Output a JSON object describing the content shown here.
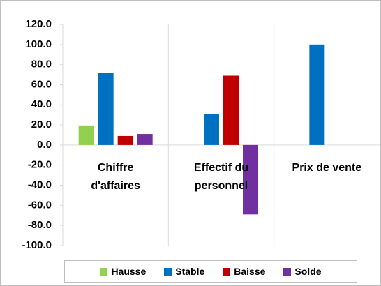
{
  "chart_data": {
    "type": "bar",
    "categories": [
      "Chiffre d'affaires",
      "Effectif du personnel",
      "Prix de vente"
    ],
    "series": [
      {
        "name": "Hausse",
        "color": "#92d050",
        "values": [
          19.5,
          0,
          0
        ]
      },
      {
        "name": "Stable",
        "color": "#0070c0",
        "values": [
          71.5,
          31,
          100
        ]
      },
      {
        "name": "Baisse",
        "color": "#c00000",
        "values": [
          9,
          69,
          0
        ]
      },
      {
        "name": "Solde",
        "color": "#7030a0",
        "values": [
          11,
          -69,
          0
        ]
      }
    ],
    "ylim": [
      -100,
      120
    ],
    "yticks": [
      {
        "value": -100,
        "label": "-100.0"
      },
      {
        "value": -80,
        "label": "-80.0"
      },
      {
        "value": -60,
        "label": "-60.0"
      },
      {
        "value": -40,
        "label": "-40.0"
      },
      {
        "value": -20,
        "label": "-20.0"
      },
      {
        "value": 0,
        "label": "0.0"
      },
      {
        "value": 20,
        "label": "20.0"
      },
      {
        "value": 40,
        "label": "40.0"
      },
      {
        "value": 60,
        "label": "60.0"
      },
      {
        "value": 80,
        "label": "80.0"
      },
      {
        "value": 100,
        "label": "100.0"
      },
      {
        "value": 120,
        "label": "120.0"
      }
    ],
    "grid": "vertical",
    "legend": "bottom"
  }
}
